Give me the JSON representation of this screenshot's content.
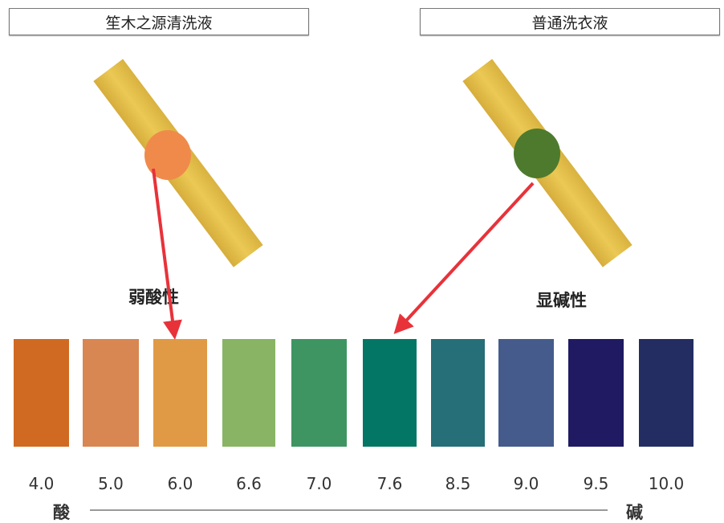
{
  "left_panel": {
    "title": "笙木之源清洗液",
    "annotation": "弱酸性",
    "spot_color": "#f08a4b"
  },
  "right_panel": {
    "title": "普通洗衣液",
    "annotation": "显碱性",
    "spot_color": "#4e7a2e"
  },
  "arrow_color": "#e8323a",
  "scale": [
    {
      "ph": "4.0",
      "color": "#d06a22"
    },
    {
      "ph": "5.0",
      "color": "#d88652"
    },
    {
      "ph": "6.0",
      "color": "#e09a45"
    },
    {
      "ph": "6.6",
      "color": "#88b464"
    },
    {
      "ph": "7.0",
      "color": "#3e9562"
    },
    {
      "ph": "7.6",
      "color": "#047666"
    },
    {
      "ph": "8.5",
      "color": "#266e78"
    },
    {
      "ph": "9.0",
      "color": "#445b8c"
    },
    {
      "ph": "9.5",
      "color": "#1f1a62"
    },
    {
      "ph": "10.0",
      "color": "#242d62"
    }
  ],
  "axis": {
    "left_label": "酸",
    "right_label": "碱"
  }
}
